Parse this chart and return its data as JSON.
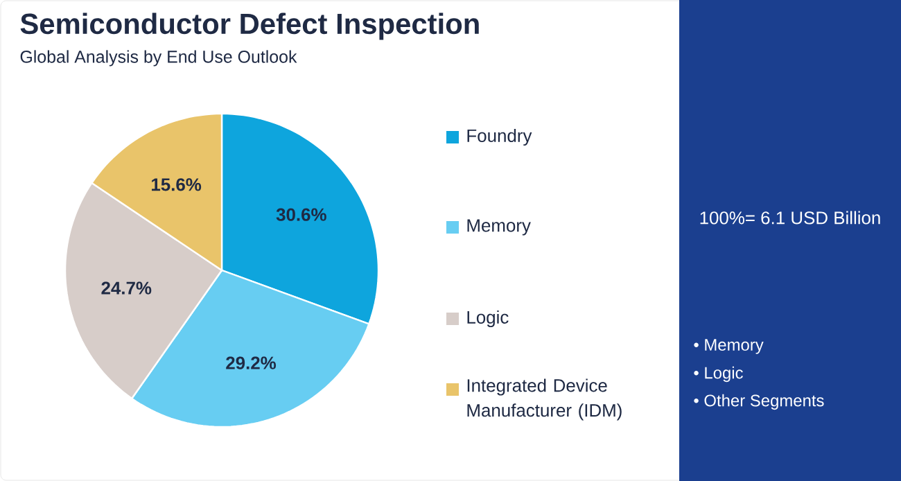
{
  "chart_data": {
    "type": "pie",
    "title": "Semiconductor Defect Inspection",
    "subtitle": "Global Analysis by End Use Outlook",
    "categories": [
      "Foundry",
      "Memory",
      "Logic",
      "Integrated Device Manufacturer (IDM)"
    ],
    "values": [
      30.6,
      29.2,
      24.7,
      15.6
    ],
    "value_labels": [
      "30.6%",
      "29.2%",
      "24.7%",
      "15.6%"
    ],
    "colors": [
      "#0ea5dd",
      "#67cdf2",
      "#d7cdc9",
      "#e9c46a"
    ],
    "legend": "right",
    "annotations": [
      "100%= 6.1 USD Billion",
      "• Memory",
      "• Logic",
      "• Other Segments"
    ]
  }
}
